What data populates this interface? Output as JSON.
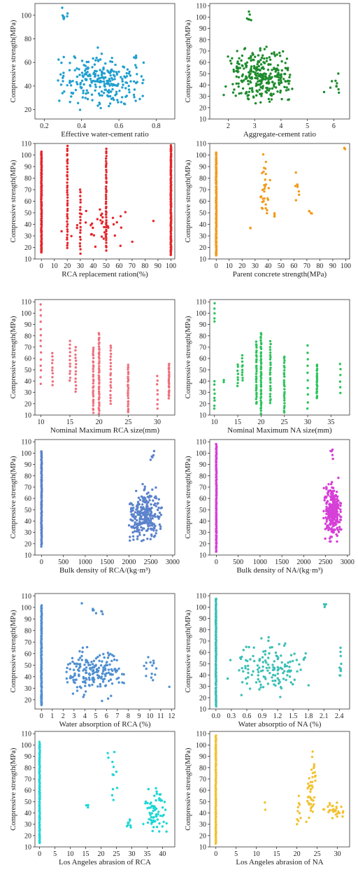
{
  "chart_data": [
    {
      "type": "scatter",
      "color": "#1f9fcf",
      "xlabel": "Effective water-cement ratio",
      "ylabel": "Compressive strength(MPa)",
      "xlim": [
        0.15,
        0.9
      ],
      "ylim": [
        12,
        110
      ],
      "xticks": [
        "0.2",
        "0.4",
        "0.6",
        "0.8"
      ],
      "yticks": [
        "20",
        "40",
        "60",
        "80",
        "100"
      ],
      "clusters": [
        {
          "x": [
            0.25,
            0.75
          ],
          "y": [
            15,
            75
          ],
          "n": 260
        },
        {
          "x": [
            0.28,
            0.33
          ],
          "y": [
            92,
            108
          ],
          "n": 8
        },
        {
          "x": [
            0.68,
            0.7
          ],
          "y": [
            62,
            66
          ],
          "n": 4
        }
      ]
    },
    {
      "type": "scatter",
      "color": "#1e8c2d",
      "xlabel": "Aggregate-cement ratio",
      "ylabel": "Compressive strength(MPa)",
      "xlim": [
        1.3,
        6.6
      ],
      "ylim": [
        10,
        112
      ],
      "xticks": [
        "2",
        "3",
        "4",
        "5",
        "6"
      ],
      "yticks": [
        "10",
        "20",
        "30",
        "40",
        "50",
        "60",
        "70",
        "80",
        "90",
        "100",
        "110"
      ],
      "clusters": [
        {
          "x": [
            1.8,
            4.6
          ],
          "y": [
            15,
            80
          ],
          "n": 300
        },
        {
          "x": [
            2.6,
            3.0
          ],
          "y": [
            92,
            109
          ],
          "n": 6
        },
        {
          "x": [
            5.5,
            6.5
          ],
          "y": [
            25,
            55
          ],
          "n": 10
        }
      ]
    },
    {
      "type": "scatter",
      "color": "#e5262b",
      "xlabel": "RCA replacement ration(%)",
      "ylabel": "Compressive strength(MPa)",
      "xlim": [
        -5,
        103
      ],
      "ylim": [
        10,
        110
      ],
      "xticks": [
        "0",
        "10",
        "20",
        "30",
        "40",
        "50",
        "60",
        "70",
        "80",
        "90",
        "100"
      ],
      "yticks": [
        "10",
        "20",
        "30",
        "40",
        "50",
        "60",
        "70",
        "80",
        "90",
        "100",
        "110"
      ],
      "columns": [
        {
          "x": 0,
          "y": [
            15,
            103
          ],
          "n": 120
        },
        {
          "x": 20,
          "y": [
            20,
            108
          ],
          "n": 40
        },
        {
          "x": 30,
          "y": [
            15,
            70
          ],
          "n": 20
        },
        {
          "x": 50,
          "y": [
            18,
            105
          ],
          "n": 45
        },
        {
          "x": 100,
          "y": [
            13,
            108
          ],
          "n": 140
        }
      ],
      "clusters": [
        {
          "x": [
            10,
            90
          ],
          "y": [
            15,
            65
          ],
          "n": 40
        }
      ]
    },
    {
      "type": "scatter",
      "color": "#f39b1c",
      "xlabel": "Parent concrete strength(MPa)",
      "ylabel": "Compressive strength(MPa)",
      "xlim": [
        -5,
        103
      ],
      "ylim": [
        10,
        110
      ],
      "xticks": [
        "0",
        "10",
        "20",
        "30",
        "40",
        "50",
        "60",
        "70",
        "80",
        "90",
        "100"
      ],
      "yticks": [
        "10",
        "20",
        "30",
        "40",
        "50",
        "60",
        "70",
        "80",
        "90",
        "100",
        "110"
      ],
      "columns": [
        {
          "x": 0,
          "y": [
            13,
            102
          ],
          "n": 150
        }
      ],
      "clusters": [
        {
          "x": [
            34,
            42
          ],
          "y": [
            35,
            104
          ],
          "n": 30
        },
        {
          "x": 45,
          "y": [
            45,
            52
          ],
          "n": 4
        },
        {
          "x": [
            60,
            65
          ],
          "y": [
            45,
            103
          ],
          "n": 8
        },
        {
          "x": [
            70,
            75
          ],
          "y": [
            48,
            55
          ],
          "n": 4
        },
        {
          "x": [
            98,
            100
          ],
          "y": [
            104,
            108
          ],
          "n": 3
        },
        {
          "x": [
            25,
            27
          ],
          "y": [
            36,
            38
          ],
          "n": 2
        }
      ]
    },
    {
      "type": "scatter",
      "color": "#ef6f7c",
      "xlabel": "Nominal Maximum RCA size(mm)",
      "ylabel": "Compressive strength(MPa)",
      "xlim": [
        9,
        33
      ],
      "ylim": [
        10,
        112
      ],
      "xticks": [
        "10",
        "15",
        "20",
        "25",
        "30"
      ],
      "yticks": [
        "10",
        "20",
        "30",
        "40",
        "50",
        "60",
        "70",
        "80",
        "90",
        "100",
        "110"
      ],
      "columns": [
        {
          "x": 10,
          "y": [
            38,
            108
          ],
          "n": 14
        },
        {
          "x": 12,
          "y": [
            37,
            65
          ],
          "n": 10
        },
        {
          "x": 15,
          "y": [
            40,
            75
          ],
          "n": 12
        },
        {
          "x": 16,
          "y": [
            30,
            70
          ],
          "n": 14
        },
        {
          "x": 19,
          "y": [
            12,
            70
          ],
          "n": 30
        },
        {
          "x": 20,
          "y": [
            12,
            82
          ],
          "n": 45
        },
        {
          "x": 22,
          "y": [
            20,
            72
          ],
          "n": 20
        },
        {
          "x": 25,
          "y": [
            12,
            55
          ],
          "n": 25
        },
        {
          "x": 30,
          "y": [
            15,
            45
          ],
          "n": 8
        },
        {
          "x": 32,
          "y": [
            25,
            55
          ],
          "n": 25
        }
      ]
    },
    {
      "type": "scatter",
      "color": "#2cc35a",
      "xlabel": "Nominal Maximum NA size(mm)",
      "ylabel": "Compressive strength(MPa)",
      "xlim": [
        9,
        39
      ],
      "ylim": [
        10,
        112
      ],
      "xticks": [
        "10",
        "15",
        "20",
        "25",
        "30",
        "35"
      ],
      "yticks": [
        "10",
        "20",
        "30",
        "40",
        "50",
        "60",
        "70",
        "80",
        "90",
        "100",
        "110"
      ],
      "columns": [
        {
          "x": 10,
          "y": [
            15,
            40
          ],
          "n": 8
        },
        {
          "x": 10,
          "y": [
            92,
            108
          ],
          "n": 5
        },
        {
          "x": 12,
          "y": [
            39,
            41
          ],
          "n": 2
        },
        {
          "x": 15,
          "y": [
            35,
            55
          ],
          "n": 8
        },
        {
          "x": 16,
          "y": [
            40,
            62
          ],
          "n": 10
        },
        {
          "x": 19,
          "y": [
            20,
            75
          ],
          "n": 30
        },
        {
          "x": 20,
          "y": [
            12,
            82
          ],
          "n": 45
        },
        {
          "x": 22,
          "y": [
            20,
            75
          ],
          "n": 25
        },
        {
          "x": 25,
          "y": [
            12,
            62
          ],
          "n": 25
        },
        {
          "x": 30,
          "y": [
            15,
            72
          ],
          "n": 10
        },
        {
          "x": 32,
          "y": [
            25,
            55
          ],
          "n": 25
        },
        {
          "x": 37,
          "y": [
            30,
            55
          ],
          "n": 6
        }
      ]
    },
    {
      "type": "scatter",
      "color": "#5b82cc",
      "xlabel": "Bulk density of RCA/(kg·m³)",
      "ylabel": "Compressive strength(MPa)",
      "xlim": [
        -150,
        3050
      ],
      "ylim": [
        10,
        112
      ],
      "xticks": [
        "0",
        "500",
        "1000",
        "1500",
        "2000",
        "2500",
        "3000"
      ],
      "yticks": [
        "10",
        "20",
        "30",
        "40",
        "50",
        "60",
        "70",
        "80",
        "90",
        "100",
        "110"
      ],
      "columns": [
        {
          "x": 0,
          "y": [
            18,
            102
          ],
          "n": 120
        }
      ],
      "clusters": [
        {
          "x": [
            1950,
            2800
          ],
          "y": [
            15,
            75
          ],
          "n": 260
        },
        {
          "x": [
            2450,
            2600
          ],
          "y": [
            90,
            108
          ],
          "n": 6
        }
      ]
    },
    {
      "type": "scatter",
      "color": "#d63fd8",
      "xlabel": "Bulk density of NA/(kg·m³)",
      "ylabel": "Compressive strength(MPa)",
      "xlim": [
        -150,
        3050
      ],
      "ylim": [
        10,
        112
      ],
      "xticks": [
        "0",
        "500",
        "1000",
        "1500",
        "2000",
        "2500",
        "3000"
      ],
      "yticks": [
        "10",
        "20",
        "30",
        "40",
        "50",
        "60",
        "70",
        "80",
        "90",
        "100",
        "110"
      ],
      "columns": [
        {
          "x": 0,
          "y": [
            13,
            108
          ],
          "n": 120
        }
      ],
      "clusters": [
        {
          "x": [
            2450,
            2880
          ],
          "y": [
            15,
            80
          ],
          "n": 260
        },
        {
          "x": [
            2600,
            2700
          ],
          "y": [
            90,
            108
          ],
          "n": 6
        }
      ]
    },
    {
      "type": "scatter",
      "color": "#4f8fd1",
      "xlabel": "Water absorption of RCA (%)",
      "ylabel": "Compressive strength(MPa)",
      "xlim": [
        -0.6,
        12.3
      ],
      "ylim": [
        12,
        112
      ],
      "xticks": [
        "0",
        "1",
        "2",
        "3",
        "4",
        "5",
        "6",
        "7",
        "8",
        "9",
        "10",
        "11",
        "12"
      ],
      "yticks": [
        "20",
        "30",
        "40",
        "50",
        "60",
        "70",
        "80",
        "90",
        "100",
        "110"
      ],
      "columns": [
        {
          "x": 0,
          "y": [
            15,
            102
          ],
          "n": 130
        }
      ],
      "clusters": [
        {
          "x": [
            1.8,
            8
          ],
          "y": [
            15,
            72
          ],
          "n": 190
        },
        {
          "x": [
            3.5,
            6.5
          ],
          "y": [
            90,
            108
          ],
          "n": 8
        },
        {
          "x": [
            9,
            11
          ],
          "y": [
            30,
            66
          ],
          "n": 14
        },
        {
          "x": 11.8,
          "y": [
            30,
            32
          ],
          "n": 1
        }
      ]
    },
    {
      "type": "scatter",
      "color": "#3cbfb6",
      "xlabel": "Water absorptio of NA (%)",
      "ylabel": "Compressive strength(MPa)",
      "xlim": [
        -0.12,
        2.6
      ],
      "ylim": [
        10,
        112
      ],
      "xticks": [
        "0.0",
        "0.3",
        "0.6",
        "0.9",
        "1.2",
        "1.5",
        "1.8",
        "2.1",
        "2.4"
      ],
      "yticks": [
        "10",
        "20",
        "30",
        "40",
        "50",
        "60",
        "70",
        "80",
        "90",
        "100",
        "110"
      ],
      "columns": [
        {
          "x": 0,
          "y": [
            13,
            108
          ],
          "n": 120
        }
      ],
      "clusters": [
        {
          "x": [
            0.2,
            1.9
          ],
          "y": [
            15,
            80
          ],
          "n": 140
        },
        {
          "x": [
            2.1,
            2.15
          ],
          "y": [
            96,
            108
          ],
          "n": 4
        },
        {
          "x": [
            2.4,
            2.45
          ],
          "y": [
            32,
            70
          ],
          "n": 10
        }
      ]
    },
    {
      "type": "scatter",
      "color": "#1fd6d6",
      "xlabel": "Los Angeles abrasion of RCA",
      "ylabel": "Compressive strength(MPa)",
      "xlim": [
        -1.5,
        44
      ],
      "ylim": [
        10,
        112
      ],
      "xticks": [
        "0",
        "5",
        "10",
        "15",
        "20",
        "25",
        "30",
        "35",
        "40"
      ],
      "yticks": [
        "10",
        "20",
        "30",
        "40",
        "50",
        "60",
        "70",
        "80",
        "90",
        "100",
        "110"
      ],
      "columns": [
        {
          "x": 0,
          "y": [
            13,
            102
          ],
          "n": 120
        }
      ],
      "clusters": [
        {
          "x": [
            15,
            16
          ],
          "y": [
            38,
            60
          ],
          "n": 3
        },
        {
          "x": [
            22,
            26
          ],
          "y": [
            38,
            108
          ],
          "n": 12
        },
        {
          "x": [
            28,
            30
          ],
          "y": [
            15,
            50
          ],
          "n": 8
        },
        {
          "x": [
            33,
            42
          ],
          "y": [
            15,
            72
          ],
          "n": 70
        }
      ]
    },
    {
      "type": "scatter",
      "color": "#f2c231",
      "xlabel": "Los Angeles abrasion of NA",
      "ylabel": "Compressive strength(MPa)",
      "xlim": [
        -1.5,
        33
      ],
      "ylim": [
        10,
        112
      ],
      "xticks": [
        "0",
        "5",
        "10",
        "15",
        "20",
        "25",
        "30"
      ],
      "yticks": [
        "10",
        "20",
        "30",
        "40",
        "50",
        "60",
        "70",
        "80",
        "90",
        "100",
        "110"
      ],
      "columns": [
        {
          "x": 0,
          "y": [
            13,
            108
          ],
          "n": 120
        }
      ],
      "clusters": [
        {
          "x": [
            12,
            12.3
          ],
          "y": [
            38,
            62
          ],
          "n": 2
        },
        {
          "x": [
            20,
            21
          ],
          "y": [
            15,
            68
          ],
          "n": 10
        },
        {
          "x": [
            22,
            25
          ],
          "y": [
            15,
            108
          ],
          "n": 45
        },
        {
          "x": [
            26,
            32
          ],
          "y": [
            30,
            55
          ],
          "n": 30
        }
      ]
    }
  ]
}
